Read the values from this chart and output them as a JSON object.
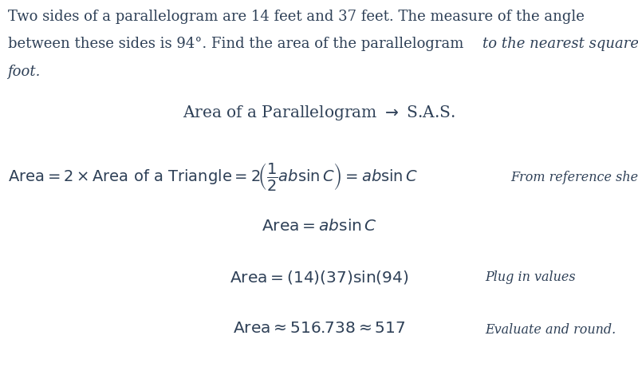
{
  "background_color": "#ffffff",
  "text_color": "#2e4057",
  "font_size_intro": 13.0,
  "font_size_heading": 14.5,
  "font_size_eq": 14.5,
  "font_size_note": 11.5,
  "heading": "Area of a Parallelogram $\\rightarrow$ S.A.S.",
  "line1_note": "From reference sheet.",
  "line3_note": "Plug in values",
  "line4_note": "Evaluate and round."
}
